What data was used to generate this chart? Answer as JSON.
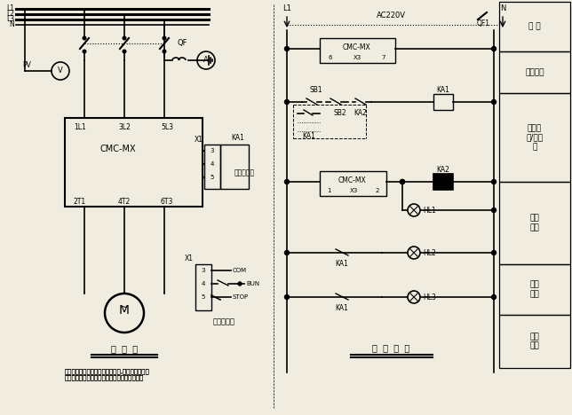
{
  "bg_color": "#f0ede0",
  "line_color": "#000000",
  "text_color": "#000000",
  "title_left": "主  回  路",
  "title_right": "控  制  回  路",
  "note_text": "此控制回路图以出厂参数设置为准,如用户对继电器\n的输出方式进行修改，需对此图做相应的调整。",
  "right_labels": [
    "微 断",
    "控制电源",
    "软起动\n起/停控\n制",
    "故障\n指示",
    "运行\n指示",
    "停止\n指示"
  ],
  "left_labels": [
    "L1",
    "L2",
    "L3",
    "N"
  ],
  "device_cmc": "CMC-MX",
  "ac_voltage": "AC220V"
}
